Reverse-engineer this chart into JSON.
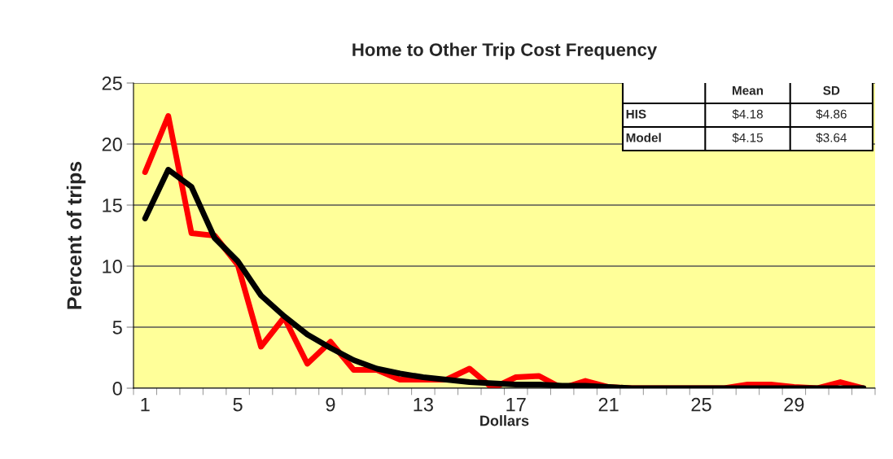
{
  "chart_data": {
    "type": "line",
    "title": "Home to Other Trip Cost Frequency",
    "xlabel": "Dollars",
    "ylabel": "Percent of trips",
    "categories": [
      "1",
      null,
      null,
      null,
      "5",
      null,
      null,
      null,
      "9",
      null,
      null,
      null,
      "13",
      null,
      null,
      null,
      "17",
      null,
      null,
      null,
      "21",
      null,
      null,
      null,
      "25",
      null,
      null,
      null,
      "29",
      null,
      null,
      null
    ],
    "series": [
      {
        "color": "#ff0000",
        "values": [
          17.7,
          22.3,
          12.7,
          12.5,
          10.1,
          3.4,
          5.8,
          2.0,
          3.8,
          1.5,
          1.5,
          0.7,
          0.7,
          0.7,
          1.6,
          0.0,
          0.9,
          1.0,
          0.0,
          0.6,
          0.1,
          0,
          0,
          0,
          0,
          0,
          0.3,
          0.3,
          0.1,
          0,
          0.5,
          0
        ]
      },
      {
        "color": "#000000",
        "values": [
          13.9,
          17.9,
          16.5,
          12.3,
          10.4,
          7.6,
          5.9,
          4.4,
          3.3,
          2.3,
          1.6,
          1.2,
          0.9,
          0.7,
          0.5,
          0.4,
          0.3,
          0.3,
          0.2,
          0.2,
          0.1,
          0,
          0,
          0,
          0,
          0,
          0,
          0,
          0,
          0,
          0,
          0
        ]
      }
    ],
    "ylim": [
      0,
      25
    ],
    "yticks": [
      0,
      5,
      10,
      15,
      20,
      25
    ],
    "grid": "y",
    "legend": false,
    "marker": "none",
    "line_style": "solid",
    "annotations": [
      "Mean",
      "SD",
      "HIS",
      "$4.18",
      "$4.86",
      "Model",
      "$4.15",
      "$3.64"
    ]
  }
}
